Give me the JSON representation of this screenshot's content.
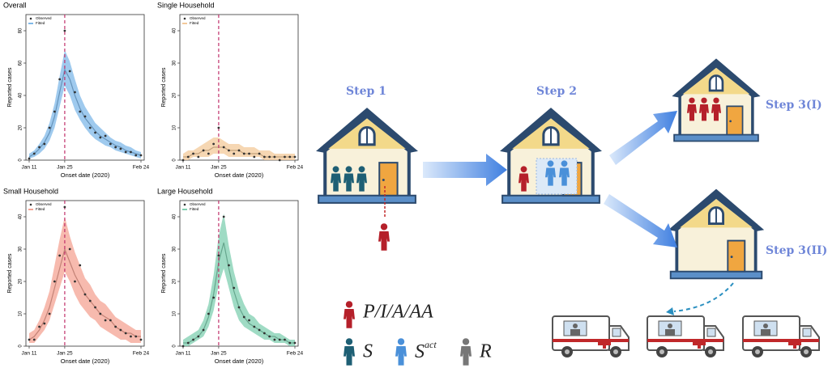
{
  "chart_data": [
    {
      "type": "line",
      "title": "Overall",
      "x_label": "Onset date (2020)",
      "y_label": "Reported cases",
      "categories": [
        "Jan 11",
        null,
        null,
        null,
        null,
        null,
        null,
        "Jan 25",
        null,
        null,
        null,
        null,
        null,
        null,
        null,
        null,
        null,
        null,
        null,
        null,
        null,
        null,
        "Feb 24"
      ],
      "reference_line": "Jan 25",
      "ylim": [
        0,
        90
      ],
      "yticks": [
        0,
        20,
        40,
        60,
        80
      ],
      "series": [
        {
          "name": "Observed",
          "color": "#333333",
          "values": [
            1,
            4,
            8,
            10,
            20,
            30,
            50,
            80,
            55,
            42,
            30,
            27,
            20,
            17,
            14,
            15,
            10,
            8,
            7,
            5,
            5,
            3,
            3
          ]
        },
        {
          "name": "Fitted",
          "color": "#7fb8e8",
          "values": [
            2,
            4,
            7,
            11,
            17,
            27,
            42,
            56,
            50,
            40,
            32,
            26,
            22,
            18,
            15,
            13,
            11,
            9,
            8,
            6,
            5,
            4,
            3
          ],
          "lower": [
            1,
            2,
            4,
            7,
            12,
            20,
            33,
            46,
            40,
            31,
            25,
            20,
            16,
            13,
            11,
            9,
            8,
            6,
            5,
            4,
            3,
            2,
            1
          ],
          "upper": [
            4,
            6,
            10,
            15,
            23,
            35,
            52,
            68,
            61,
            50,
            40,
            33,
            28,
            23,
            20,
            17,
            14,
            12,
            11,
            9,
            8,
            6,
            5
          ]
        }
      ]
    },
    {
      "type": "line",
      "title": "Single Household",
      "x_label": "Onset date (2020)",
      "y_label": "Reported cases",
      "categories": [
        "Jan 11",
        null,
        null,
        null,
        null,
        null,
        null,
        "Jan 25",
        null,
        null,
        null,
        null,
        null,
        null,
        null,
        null,
        null,
        null,
        null,
        null,
        null,
        null,
        "Feb 24"
      ],
      "reference_line": "Jan 25",
      "ylim": [
        0,
        45
      ],
      "yticks": [
        0,
        10,
        20,
        30,
        40
      ],
      "series": [
        {
          "name": "Observed",
          "color": "#333333",
          "values": [
            0,
            1,
            2,
            1,
            3,
            2,
            5,
            10,
            4,
            3,
            2,
            3,
            2,
            2,
            1,
            2,
            1,
            1,
            1,
            0,
            1,
            1,
            1
          ]
        },
        {
          "name": "Fitted",
          "color": "#f3c99a",
          "values": [
            1,
            1,
            2,
            2,
            3,
            3,
            4,
            4,
            4,
            3,
            3,
            3,
            2,
            2,
            2,
            2,
            1,
            1,
            1,
            1,
            1,
            1,
            1
          ],
          "lower": [
            0,
            0,
            1,
            1,
            1,
            1,
            2,
            2,
            2,
            1,
            1,
            1,
            1,
            1,
            1,
            1,
            0,
            0,
            0,
            0,
            0,
            0,
            0
          ],
          "upper": [
            2,
            3,
            3,
            4,
            5,
            6,
            7,
            7,
            6,
            5,
            5,
            5,
            4,
            4,
            4,
            3,
            3,
            3,
            2,
            2,
            2,
            2,
            2
          ]
        }
      ]
    },
    {
      "type": "line",
      "title": "Small Household",
      "x_label": "Onset date (2020)",
      "y_label": "Reported cases",
      "categories": [
        "Jan 11",
        null,
        null,
        null,
        null,
        null,
        null,
        "Jan 25",
        null,
        null,
        null,
        null,
        null,
        null,
        null,
        null,
        null,
        null,
        null,
        null,
        null,
        null,
        "Feb 24"
      ],
      "reference_line": "Jan 25",
      "ylim": [
        0,
        45
      ],
      "yticks": [
        0,
        10,
        20,
        30,
        40
      ],
      "series": [
        {
          "name": "Observed",
          "color": "#333333",
          "values": [
            2,
            2,
            6,
            7,
            10,
            20,
            28,
            43,
            30,
            20,
            25,
            16,
            14,
            12,
            10,
            8,
            8,
            6,
            5,
            4,
            3,
            3,
            2
          ]
        },
        {
          "name": "Fitted",
          "color": "#f4a393",
          "values": [
            2,
            3,
            5,
            8,
            12,
            18,
            24,
            30,
            26,
            22,
            19,
            16,
            14,
            12,
            10,
            9,
            8,
            6,
            5,
            4,
            4,
            3,
            3
          ],
          "lower": [
            1,
            1,
            3,
            5,
            8,
            13,
            18,
            23,
            20,
            16,
            13,
            11,
            9,
            8,
            6,
            5,
            4,
            3,
            2,
            2,
            1,
            1,
            1
          ],
          "upper": [
            4,
            5,
            8,
            12,
            17,
            25,
            33,
            40,
            34,
            29,
            25,
            21,
            19,
            16,
            14,
            13,
            11,
            9,
            8,
            7,
            6,
            5,
            5
          ]
        }
      ]
    },
    {
      "type": "line",
      "title": "Large Household",
      "x_label": "Onset date (2020)",
      "y_label": "Reported cases",
      "categories": [
        "Jan 11",
        null,
        null,
        null,
        null,
        null,
        null,
        "Jan 25",
        null,
        null,
        null,
        null,
        null,
        null,
        null,
        null,
        null,
        null,
        null,
        null,
        null,
        null,
        "Feb 24"
      ],
      "reference_line": "Jan 25",
      "ylim": [
        0,
        45
      ],
      "yticks": [
        0,
        10,
        20,
        30,
        40
      ],
      "series": [
        {
          "name": "Observed",
          "color": "#333333",
          "values": [
            0,
            1,
            2,
            3,
            5,
            10,
            15,
            28,
            40,
            25,
            18,
            12,
            9,
            8,
            6,
            5,
            4,
            3,
            2,
            2,
            2,
            1,
            1
          ]
        },
        {
          "name": "Fitted",
          "color": "#7fcfb0",
          "values": [
            1,
            1,
            2,
            3,
            5,
            9,
            16,
            26,
            32,
            24,
            17,
            12,
            9,
            7,
            6,
            5,
            4,
            3,
            3,
            2,
            2,
            1,
            1
          ],
          "lower": [
            0,
            0,
            1,
            2,
            3,
            6,
            11,
            19,
            24,
            18,
            12,
            8,
            6,
            5,
            4,
            3,
            2,
            2,
            1,
            1,
            1,
            0,
            0
          ],
          "upper": [
            2,
            3,
            4,
            5,
            8,
            13,
            22,
            34,
            41,
            31,
            23,
            17,
            13,
            10,
            9,
            7,
            6,
            5,
            4,
            4,
            3,
            2,
            2
          ]
        }
      ]
    }
  ],
  "diagram": {
    "steps": [
      "Step 1",
      "Step 2",
      "Step 3(I)",
      "Step 3(II)"
    ],
    "legend": [
      {
        "label": "P/I/A/AA"
      },
      {
        "label": "S"
      },
      {
        "label": "S",
        "superscript": "act"
      },
      {
        "label": "R"
      }
    ]
  }
}
